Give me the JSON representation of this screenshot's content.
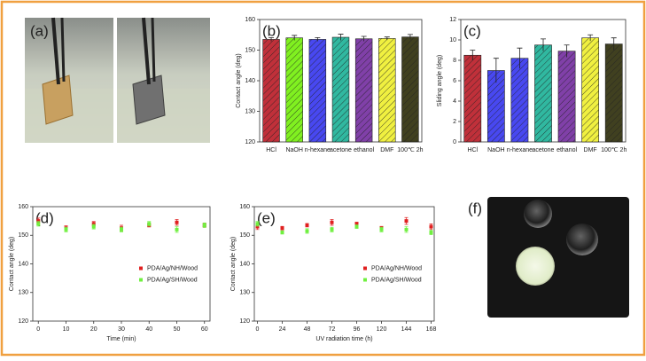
{
  "panels": {
    "a": "(a)",
    "f": "(f)"
  },
  "chart_data": [
    {
      "type": "bar",
      "panel_label": "(b)",
      "y_label": "Contact angle (deg)",
      "categories": [
        "HCl",
        "NaOH",
        "n-hexane",
        "acetone",
        "ethanol",
        "DMF",
        "100℃ 2h"
      ],
      "values": [
        153.5,
        154,
        153.5,
        154.2,
        153.7,
        153.8,
        154.3
      ],
      "errors": [
        0.6,
        0.8,
        0.6,
        1,
        0.8,
        0.5,
        0.8
      ],
      "colors": [
        "#c0303a",
        "#80f020",
        "#4848f0",
        "#30b8a0",
        "#8040a8",
        "#f0f040",
        "#404020"
      ],
      "ylim": [
        120,
        160
      ],
      "yticks": [
        120,
        130,
        140,
        150,
        160
      ]
    },
    {
      "type": "bar",
      "panel_label": "(c)",
      "y_label": "Sliding angle (deg)",
      "categories": [
        "HCl",
        "NaOH",
        "n-hexane",
        "acetone",
        "ethanol",
        "DMF",
        "100℃ 2h"
      ],
      "values": [
        8.5,
        7,
        8.2,
        9.5,
        8.9,
        10.2,
        9.6
      ],
      "errors": [
        0.5,
        1.2,
        1,
        0.6,
        0.6,
        0.3,
        0.6
      ],
      "colors": [
        "#c0303a",
        "#4848f0",
        "#4848f0",
        "#30b8a0",
        "#8040a8",
        "#f0f040",
        "#404020"
      ],
      "ylim": [
        0,
        12
      ],
      "yticks": [
        0,
        2,
        4,
        6,
        8,
        10,
        12
      ]
    },
    {
      "type": "scatter",
      "panel_label": "(d)",
      "y_label": "Contact angle (deg)",
      "x_label": "Time (min)",
      "legend": "center right",
      "series": [
        {
          "name": "PDA/Ag/NH/Wood",
          "color": "#e02020",
          "x": [
            0,
            10,
            20,
            30,
            40,
            50,
            60
          ],
          "values": [
            155,
            152.5,
            154,
            152.5,
            153.5,
            154.5,
            153.5
          ],
          "errors": [
            1,
            0.8,
            0.8,
            1,
            0.6,
            1,
            0.6
          ]
        },
        {
          "name": "PDA/Ag/SH/Wood",
          "color": "#70f040",
          "x": [
            0,
            10,
            20,
            30,
            40,
            50,
            60
          ],
          "values": [
            154,
            152,
            153,
            152,
            154,
            152,
            153.5
          ],
          "errors": [
            0.8,
            0.8,
            0.8,
            0.8,
            0.8,
            1,
            0.8
          ]
        }
      ],
      "xlim": [
        -2,
        62
      ],
      "xticks": [
        0,
        10,
        20,
        30,
        40,
        50,
        60
      ],
      "ylim": [
        120,
        160
      ],
      "yticks": [
        120,
        130,
        140,
        150,
        160
      ]
    },
    {
      "type": "scatter",
      "panel_label": "(e)",
      "y_label": "Contact angle (deg)",
      "x_label": "UV radiation time (h)",
      "legend": "center right",
      "series": [
        {
          "name": "PDA/Ag/NH/Wood",
          "color": "#e02020",
          "x": [
            0,
            24,
            48,
            72,
            96,
            120,
            144,
            168
          ],
          "values": [
            153,
            152.5,
            153.5,
            154.5,
            154,
            152.5,
            155,
            153
          ],
          "errors": [
            1,
            0.6,
            0.6,
            1,
            0.6,
            0.6,
            1.2,
            1
          ]
        },
        {
          "name": "PDA/Ag/SH/Wood",
          "color": "#70f040",
          "x": [
            0,
            24,
            48,
            72,
            96,
            120,
            144,
            168
          ],
          "values": [
            154,
            151,
            151.5,
            152,
            153,
            152,
            152,
            151
          ],
          "errors": [
            0.8,
            0.6,
            0.8,
            0.8,
            0.6,
            0.8,
            1,
            0.8
          ]
        }
      ],
      "xlim": [
        -3,
        171
      ],
      "xticks": [
        0,
        24,
        48,
        72,
        96,
        120,
        144,
        168
      ],
      "ylim": [
        120,
        160
      ],
      "yticks": [
        120,
        130,
        140,
        150,
        160
      ]
    }
  ]
}
